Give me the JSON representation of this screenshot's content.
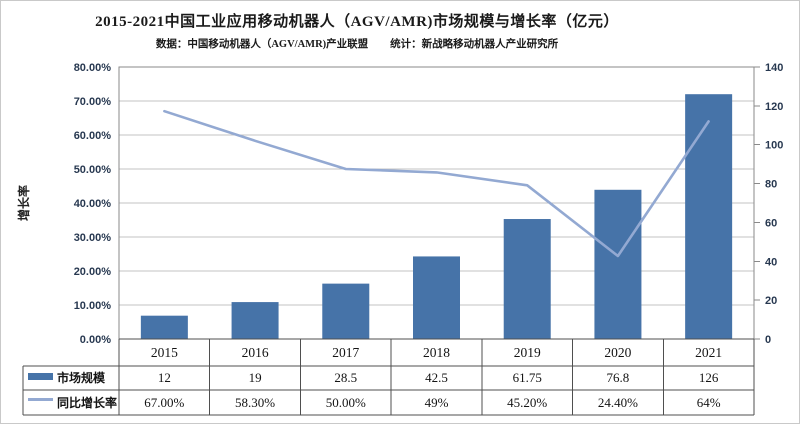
{
  "title": "2015-2021中国工业应用移动机器人（AGV/AMR)市场规模与增长率（亿元）",
  "subtitle": {
    "left": "数据：中国移动机器人（AGV/AMR)产业联盟",
    "right": "统计：新战略移动机器人产业研究所"
  },
  "chart_data": {
    "type": "bar+line",
    "title": "2015-2021中国工业应用移动机器人（AGV/AMR)市场规模与增长率（亿元）",
    "categories": [
      "2015",
      "2016",
      "2017",
      "2018",
      "2019",
      "2020",
      "2021"
    ],
    "series": [
      {
        "name": "市场规模",
        "type": "bar",
        "axis": "right",
        "values": [
          12,
          19,
          28.5,
          42.5,
          61.75,
          76.8,
          126
        ],
        "color": "#4673a8"
      },
      {
        "name": "同比增长率",
        "type": "line",
        "axis": "left",
        "values_percent": [
          67.0,
          58.3,
          50.0,
          49.0,
          45.2,
          24.4,
          64.0
        ],
        "display_labels": [
          "67.00%",
          "58.30%",
          "50.00%",
          "49%",
          "45.20%",
          "24.40%",
          "64%"
        ],
        "color": "#93a9d2"
      }
    ],
    "left_axis": {
      "title": "增长率",
      "min": 0,
      "max": 80,
      "step": 10,
      "tick_labels": [
        "0.00%",
        "10.00%",
        "20.00%",
        "30.00%",
        "40.00%",
        "50.00%",
        "60.00%",
        "70.00%",
        "80.00%"
      ]
    },
    "right_axis": {
      "min": 0,
      "max": 140,
      "step": 20,
      "tick_labels": [
        "0",
        "20",
        "40",
        "60",
        "80",
        "100",
        "120",
        "140"
      ]
    },
    "grid": true,
    "legend_position": "table-left"
  },
  "table": {
    "header_row": [
      "2015",
      "2016",
      "2017",
      "2018",
      "2019",
      "2020",
      "2021"
    ],
    "rows": [
      {
        "label": "市场规模",
        "swatch": "bar",
        "values": [
          "12",
          "19",
          "28.5",
          "42.5",
          "61.75",
          "76.8",
          "126"
        ]
      },
      {
        "label": "同比增长率",
        "swatch": "line",
        "values": [
          "67.00%",
          "58.30%",
          "50.00%",
          "49%",
          "45.20%",
          "24.40%",
          "64%"
        ]
      }
    ]
  },
  "colors": {
    "bar": "#4673a8",
    "line": "#93a9d2",
    "grid": "#c3c3c3",
    "plot_border": "#8a8a8a",
    "table_border": "#4f4f4f",
    "axis_text": "#273850",
    "text": "#1a1a1a",
    "background": "#ffffff"
  }
}
